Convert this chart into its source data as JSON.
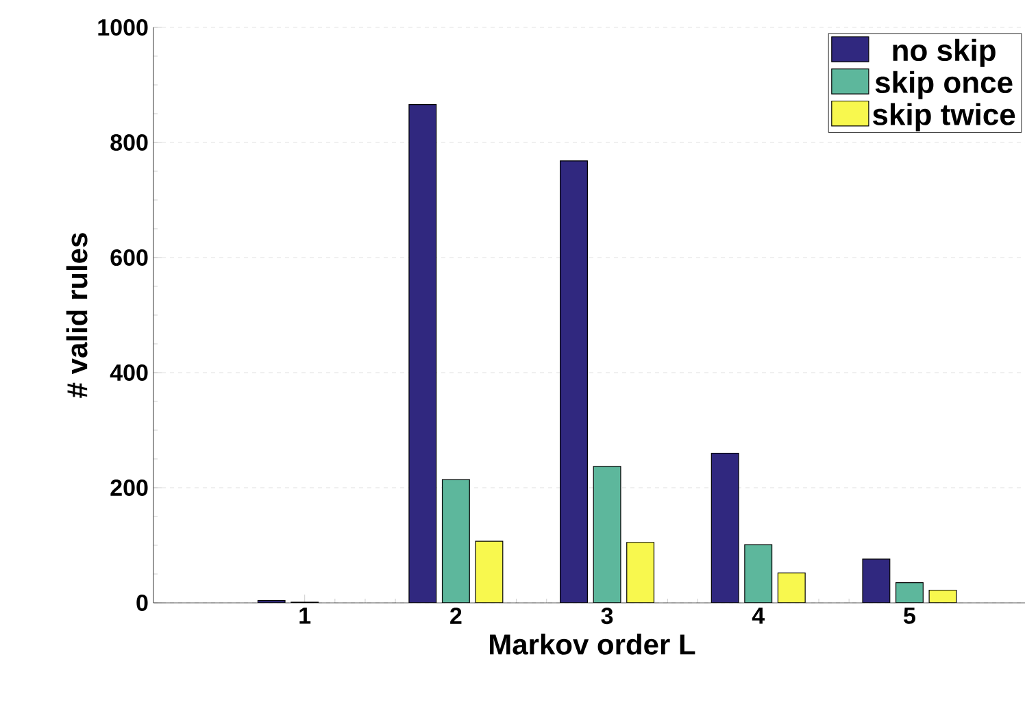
{
  "chart_data": {
    "type": "bar",
    "xlabel": "Markov order L",
    "ylabel": "# valid rules",
    "categories": [
      "1",
      "2",
      "3",
      "4",
      "5"
    ],
    "series": [
      {
        "name": "no skip",
        "color": "#30287f",
        "values": [
          4,
          866,
          768,
          260,
          76
        ]
      },
      {
        "name": "skip once",
        "color": "#5db79c",
        "values": [
          1,
          214,
          237,
          101,
          35
        ]
      },
      {
        "name": "skip twice",
        "color": "#f8f84e",
        "values": [
          null,
          107,
          105,
          52,
          22
        ]
      }
    ],
    "ylim": [
      0,
      1000
    ],
    "yticks": [
      0,
      200,
      400,
      600,
      800,
      1000
    ],
    "grid": "y",
    "legend": "top right"
  }
}
